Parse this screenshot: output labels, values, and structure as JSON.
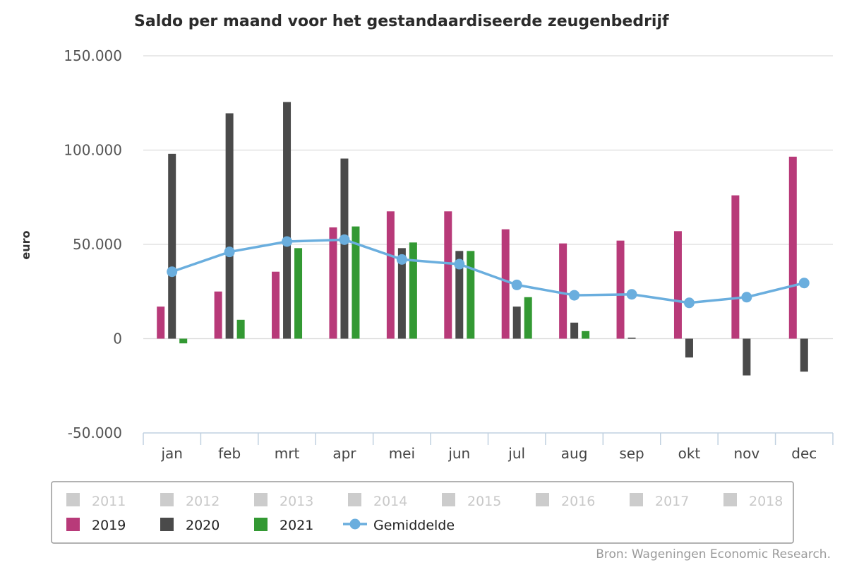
{
  "chart_data": {
    "type": "bar",
    "title": "Saldo per maand voor het gestandaardiseerde zeugenbedrijf",
    "ylabel": "euro",
    "ylim": [
      -50000,
      150000
    ],
    "yticks": [
      150000,
      100000,
      50000,
      0,
      -50000
    ],
    "ytick_labels": [
      "150.000",
      "100.000",
      "50.000",
      "0",
      "-50.000"
    ],
    "grid": true,
    "legend_placement": "bottom",
    "categories": [
      "jan",
      "feb",
      "mrt",
      "apr",
      "mei",
      "jun",
      "jul",
      "aug",
      "sep",
      "okt",
      "nov",
      "dec"
    ],
    "series": [
      {
        "name": "2019",
        "type": "bar",
        "color": "#b83a79",
        "values": [
          17000,
          25000,
          35500,
          59000,
          67500,
          67500,
          58000,
          50500,
          52000,
          57000,
          76000,
          96500
        ]
      },
      {
        "name": "2020",
        "type": "bar",
        "color": "#4a4a4a",
        "values": [
          98000,
          119500,
          125500,
          95500,
          48000,
          46500,
          17000,
          8500,
          500,
          -10000,
          -19500,
          -17500
        ]
      },
      {
        "name": "2021",
        "type": "bar",
        "color": "#339933",
        "values": [
          -2500,
          10000,
          48000,
          59500,
          51000,
          46500,
          22000,
          4000,
          null,
          null,
          null,
          null
        ]
      },
      {
        "name": "Gemiddelde",
        "type": "line",
        "color": "#6aaede",
        "values": [
          35500,
          46000,
          51500,
          52500,
          42000,
          39500,
          28500,
          23000,
          23500,
          19000,
          22000,
          29500
        ]
      }
    ],
    "hidden_legend_entries": [
      "2011",
      "2012",
      "2013",
      "2014",
      "2015",
      "2016",
      "2017",
      "2018"
    ],
    "source": "Bron: Wageningen Economic Research."
  },
  "colors": {
    "hidden_legend": "#cccccc",
    "grid": "#dcdcdc",
    "axis": "#c0d0e0"
  }
}
